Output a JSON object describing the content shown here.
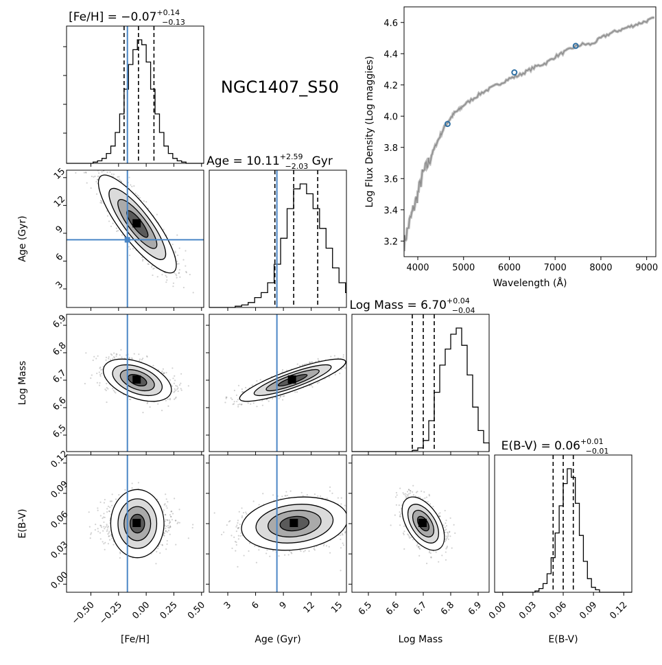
{
  "object_name": "NGC1407_S50",
  "colors": {
    "truth": "#4a86c6",
    "axis": "#000000",
    "spectrum": "#8a8a8a",
    "photometry": "#2e6fa3",
    "contour_fill": "#555555"
  },
  "chart_data": [
    {
      "type": "histogram",
      "panel": "hist-feh",
      "title": "[Fe/H] = −0.07",
      "title_sup": "+0.14",
      "title_sub": "−0.13",
      "title_suffix": "",
      "xlim": [
        -0.72,
        0.52
      ],
      "bins": {
        "edges_from": -0.72,
        "edges_step": 0.04,
        "counts": [
          0,
          0,
          0,
          0,
          0,
          0,
          1,
          2,
          4,
          8,
          14,
          25,
          40,
          60,
          80,
          92,
          100,
          96,
          82,
          60,
          40,
          25,
          14,
          8,
          4,
          2,
          1,
          0,
          0,
          0,
          0
        ]
      },
      "quantiles": [
        -0.2,
        -0.07,
        0.07
      ],
      "truth": -0.17
    },
    {
      "type": "histogram",
      "panel": "hist-age",
      "title": "Age = 10.11",
      "title_sup": "+2.59",
      "title_sub": "−2.03",
      "title_suffix": " Gyr",
      "xlim": [
        1.0,
        15.8
      ],
      "bins": {
        "edges_from": 1.0,
        "edges_step": 0.7,
        "counts": [
          0,
          0,
          0,
          0,
          1,
          2,
          4,
          8,
          12,
          20,
          35,
          56,
          80,
          96,
          100,
          92,
          80,
          64,
          48,
          32,
          20,
          12
        ]
      },
      "quantiles": [
        8.08,
        10.11,
        12.7
      ],
      "truth": 8.3
    },
    {
      "type": "histogram",
      "panel": "hist-mass",
      "title": "Log Mass = 6.70",
      "title_sup": "+0.04",
      "title_sub": "−0.04",
      "title_suffix": "",
      "xlim": [
        6.44,
        6.94
      ],
      "bins": {
        "edges_from": 6.44,
        "edges_step": 0.02,
        "counts": [
          0,
          0,
          0,
          0,
          0,
          0,
          0,
          0,
          0,
          0,
          0,
          1,
          3,
          9,
          25,
          48,
          70,
          83,
          95,
          100,
          86,
          62,
          36,
          17,
          7,
          2,
          0
        ]
      },
      "quantiles": [
        6.66,
        6.7,
        6.74
      ],
      "truth": null
    },
    {
      "type": "histogram",
      "panel": "hist-ebv",
      "title": "E(B-V) = 0.06",
      "title_sup": "+0.01",
      "title_sub": "−0.01",
      "title_suffix": "",
      "xlim": [
        -0.008,
        0.128
      ],
      "bins": {
        "edges_from": -0.008,
        "edges_step": 0.004,
        "counts": [
          0,
          0,
          0,
          0,
          0,
          0,
          0,
          0,
          0,
          0,
          1,
          3,
          7,
          15,
          28,
          48,
          70,
          88,
          100,
          93,
          72,
          46,
          25,
          11,
          4,
          2,
          0,
          0,
          0,
          0,
          0,
          0,
          0,
          0,
          0
        ]
      },
      "quantiles": [
        0.05,
        0.06,
        0.07
      ],
      "truth": null
    },
    {
      "type": "contour",
      "panel": "age-vs-feh",
      "x": "Fe/H",
      "y": "Age",
      "xlim": [
        -0.72,
        0.52
      ],
      "ylim": [
        1.0,
        15.8
      ],
      "center": [
        -0.08,
        10.0
      ],
      "sigma": [
        0.16,
        2.4
      ],
      "rho": -0.84,
      "truth": [
        -0.17,
        8.3
      ]
    },
    {
      "type": "contour",
      "panel": "mass-vs-feh",
      "x": "Fe/H",
      "y": "Log Mass",
      "xlim": [
        -0.72,
        0.52
      ],
      "ylim": [
        6.44,
        6.94
      ],
      "center": [
        -0.08,
        6.7
      ],
      "sigma": [
        0.14,
        0.035
      ],
      "rho": -0.45,
      "truth": [
        -0.17,
        null
      ]
    },
    {
      "type": "contour",
      "panel": "mass-vs-age",
      "x": "Age",
      "y": "Log Mass",
      "xlim": [
        1.0,
        15.8
      ],
      "ylim": [
        6.44,
        6.94
      ],
      "center": [
        10.0,
        6.7
      ],
      "sigma": [
        2.6,
        0.035
      ],
      "rho": 0.86,
      "truth": [
        8.3,
        null
      ]
    },
    {
      "type": "contour",
      "panel": "ebv-vs-feh",
      "x": "Fe/H",
      "y": "E(B-V)",
      "xlim": [
        -0.72,
        0.52
      ],
      "ylim": [
        -0.008,
        0.128
      ],
      "center": [
        -0.08,
        0.06
      ],
      "sigma": [
        0.14,
        0.012
      ],
      "rho": 0.0,
      "truth": [
        -0.17,
        null
      ]
    },
    {
      "type": "contour",
      "panel": "ebv-vs-age",
      "x": "Age",
      "y": "E(B-V)",
      "xlim": [
        1.0,
        15.8
      ],
      "ylim": [
        -0.008,
        0.128
      ],
      "center": [
        10.2,
        0.06
      ],
      "sigma": [
        2.6,
        0.012
      ],
      "rho": 0.18,
      "truth": [
        8.3,
        null
      ]
    },
    {
      "type": "contour",
      "panel": "ebv-vs-mass",
      "x": "Log Mass",
      "y": "E(B-V)",
      "xlim": [
        6.44,
        6.94
      ],
      "ylim": [
        -0.008,
        0.128
      ],
      "center": [
        6.7,
        0.06
      ],
      "sigma": [
        0.035,
        0.012
      ],
      "rho": -0.5,
      "truth": [
        null,
        null
      ]
    },
    {
      "type": "line",
      "panel": "spectrum",
      "xlabel": "Wavelength (Å)",
      "ylabel": "Log Flux Density (Log maggies)",
      "xlim": [
        3700,
        9200
      ],
      "ylim": [
        3.1,
        4.7
      ],
      "x": [
        3700,
        3800,
        3900,
        4000,
        4100,
        4200,
        4300,
        4400,
        4500,
        4600,
        4700,
        4800,
        4900,
        5000,
        5200,
        5400,
        5600,
        5800,
        6000,
        6200,
        6400,
        6600,
        6800,
        7000,
        7200,
        7400,
        7600,
        7800,
        8000,
        8200,
        8400,
        8600,
        8800,
        9000,
        9200
      ],
      "y": [
        3.18,
        3.3,
        3.4,
        3.5,
        3.62,
        3.68,
        3.75,
        3.82,
        3.88,
        3.94,
        3.98,
        4.02,
        4.04,
        4.07,
        4.11,
        4.15,
        4.18,
        4.21,
        4.24,
        4.26,
        4.29,
        4.32,
        4.34,
        4.38,
        4.41,
        4.44,
        4.46,
        4.46,
        4.5,
        4.53,
        4.55,
        4.57,
        4.59,
        4.61,
        4.63
      ],
      "photometry": {
        "x": [
          4650,
          6110,
          7450
        ],
        "y": [
          3.95,
          4.28,
          4.45
        ]
      },
      "xticks": [
        4000,
        5000,
        6000,
        7000,
        8000,
        9000
      ],
      "yticks": [
        3.2,
        3.4,
        3.6,
        3.8,
        4.0,
        4.2,
        4.4,
        4.6
      ]
    }
  ],
  "axes": {
    "labels": {
      "feh": "[Fe/H]",
      "age": "Age (Gyr)",
      "mass": "Log Mass",
      "ebv": "E(B-V)"
    },
    "ticks": {
      "feh": [
        "−0.50",
        "−0.25",
        "0.00",
        "0.25",
        "0.50"
      ],
      "age": [
        "3",
        "6",
        "9",
        "12",
        "15"
      ],
      "mass": [
        "6.5",
        "6.6",
        "6.7",
        "6.8",
        "6.9"
      ],
      "ebv": [
        "0.00",
        "0.03",
        "0.06",
        "0.09",
        "0.12"
      ]
    },
    "tick_values": {
      "feh": [
        -0.5,
        -0.25,
        0.0,
        0.25,
        0.5
      ],
      "age": [
        3,
        6,
        9,
        12,
        15
      ],
      "mass": [
        6.5,
        6.6,
        6.7,
        6.8,
        6.9
      ],
      "ebv": [
        0.0,
        0.03,
        0.06,
        0.09,
        0.12
      ]
    }
  }
}
